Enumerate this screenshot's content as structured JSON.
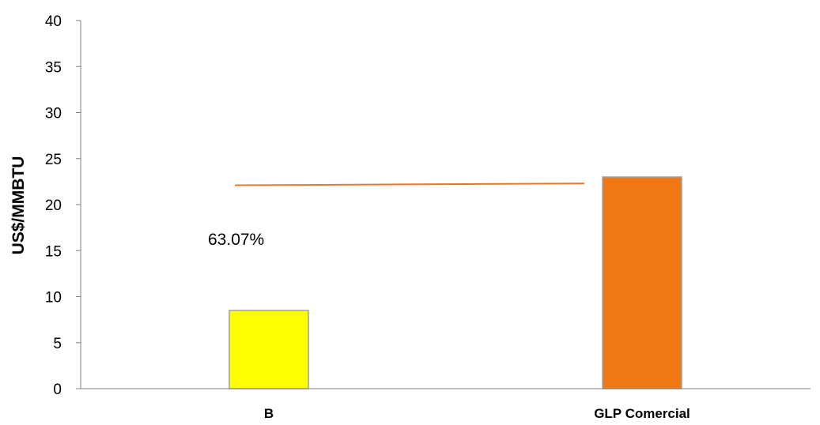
{
  "chart_data": {
    "type": "bar",
    "title": "",
    "xlabel": "",
    "ylabel": "US$/MMBTU",
    "ylim": [
      0,
      40
    ],
    "yticks": [
      0,
      5,
      10,
      15,
      20,
      25,
      30,
      35,
      40
    ],
    "grid": false,
    "categories": [
      "B",
      "GLP Comercial"
    ],
    "values": [
      8.5,
      23.0
    ],
    "bar_colors": [
      "#FFFF00",
      "#F07814"
    ],
    "reference_line": {
      "color": "#E8772A",
      "y_start": 22.1,
      "y_end": 22.3
    },
    "annotation": "63.07%"
  }
}
